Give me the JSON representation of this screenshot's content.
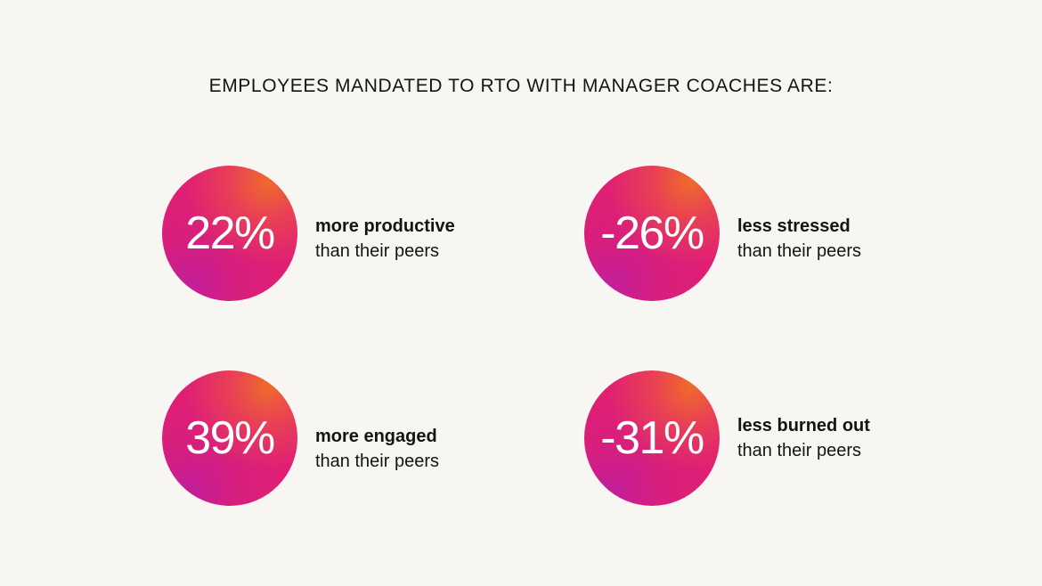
{
  "headline": "EMPLOYEES MANDATED TO RTO WITH MANAGER COACHES ARE:",
  "colors": {
    "background": "#f8f6f2",
    "circle_primary": "#e01f74",
    "circle_highlight": "#f06e28",
    "circle_shadow": "#be1ea0",
    "text": "#141414"
  },
  "stats": [
    {
      "value": "22%",
      "label": "more productive",
      "sublabel": "than their peers"
    },
    {
      "value": "-26%",
      "label": "less stressed",
      "sublabel": "than their peers"
    },
    {
      "value": "39%",
      "label": "more engaged",
      "sublabel": "than their peers"
    },
    {
      "value": "-31%",
      "label": "less burned out",
      "sublabel": "than their peers"
    }
  ]
}
